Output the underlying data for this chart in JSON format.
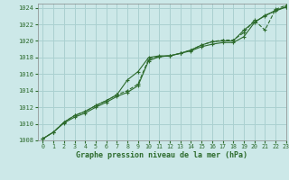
{
  "title": "Graphe pression niveau de la mer (hPa)",
  "bg_color": "#cce8e8",
  "grid_color": "#aad0d0",
  "line_color": "#2d6b2d",
  "xlim": [
    -0.5,
    23
  ],
  "ylim": [
    1008,
    1024.5
  ],
  "yticks": [
    1008,
    1010,
    1012,
    1014,
    1016,
    1018,
    1020,
    1022,
    1024
  ],
  "xticks": [
    0,
    1,
    2,
    3,
    4,
    5,
    6,
    7,
    8,
    9,
    10,
    11,
    12,
    13,
    14,
    15,
    16,
    17,
    18,
    19,
    20,
    21,
    22,
    23
  ],
  "line1_x": [
    0,
    1,
    2,
    3,
    4,
    5,
    6,
    7,
    8,
    9,
    10,
    11,
    12,
    13,
    14,
    15,
    16,
    17,
    18,
    19,
    20,
    21,
    22,
    23
  ],
  "line1_y": [
    1008.2,
    1009.0,
    1010.1,
    1010.8,
    1011.3,
    1012.0,
    1012.6,
    1013.3,
    1013.8,
    1014.6,
    1017.6,
    1018.1,
    1018.2,
    1018.5,
    1018.8,
    1019.3,
    1019.6,
    1019.8,
    1019.8,
    1020.5,
    1022.2,
    1023.1,
    1023.6,
    1024.1
  ],
  "line2_x": [
    0,
    1,
    2,
    3,
    4,
    5,
    6,
    7,
    8,
    9,
    10,
    11,
    12,
    13,
    14,
    15,
    16,
    17,
    18,
    19,
    20,
    21,
    22,
    23
  ],
  "line2_y": [
    1008.2,
    1009.0,
    1010.2,
    1011.0,
    1011.5,
    1012.2,
    1012.8,
    1013.5,
    1015.3,
    1016.3,
    1018.0,
    1018.2,
    1018.2,
    1018.5,
    1018.9,
    1019.5,
    1019.9,
    1020.0,
    1020.0,
    1021.3,
    1022.3,
    1023.0,
    1023.7,
    1024.1
  ],
  "line3_x": [
    0,
    1,
    2,
    3,
    4,
    5,
    6,
    7,
    8,
    9,
    10,
    11,
    12,
    13,
    14,
    15,
    16,
    17,
    18,
    19,
    20,
    21,
    22,
    23
  ],
  "line3_y": [
    1008.2,
    1009.0,
    1010.2,
    1011.0,
    1011.5,
    1012.2,
    1012.8,
    1013.5,
    1014.0,
    1014.8,
    1017.8,
    1018.1,
    1018.2,
    1018.5,
    1018.9,
    1019.5,
    1019.9,
    1020.1,
    1020.1,
    1021.0,
    1022.5,
    1021.3,
    1023.8,
    1024.3
  ]
}
